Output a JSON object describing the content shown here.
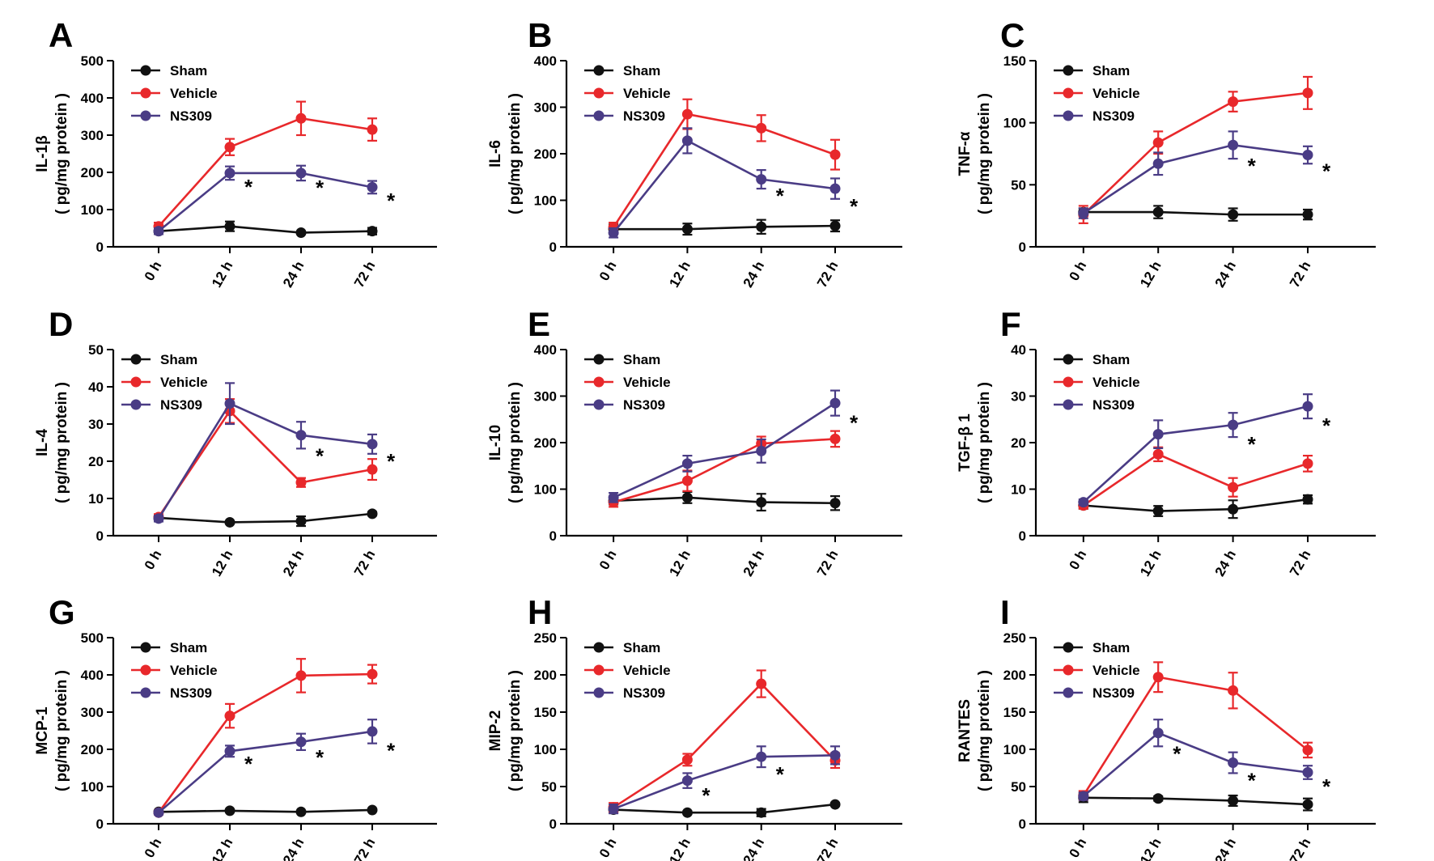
{
  "figure": {
    "series_names": [
      "Sham",
      "Vehicle",
      "NS309"
    ],
    "series_colors": {
      "Sham": "#111111",
      "Vehicle": "#e8282b",
      "NS309": "#4a3c85"
    },
    "categories": [
      "0 h",
      "12 h",
      "24 h",
      "72 h"
    ],
    "significance_marker": "*"
  },
  "chart_data": [
    {
      "type": "line",
      "panel": "A",
      "ylabel": "IL-1β",
      "yunit": "( pg/mg protein )",
      "ylim": [
        0,
        500
      ],
      "yticks": [
        "0",
        "100",
        "200",
        "300",
        "400",
        "500"
      ],
      "categories": [
        "0 h",
        "12 h",
        "24 h",
        "72 h"
      ],
      "series": [
        {
          "name": "Sham",
          "values": [
            42,
            55,
            38,
            42
          ],
          "errors": [
            8,
            13,
            4,
            9
          ]
        },
        {
          "name": "Vehicle",
          "values": [
            55,
            268,
            345,
            315
          ],
          "errors": [
            10,
            22,
            45,
            30
          ]
        },
        {
          "name": "NS309",
          "values": [
            42,
            198,
            198,
            160
          ],
          "errors": [
            8,
            18,
            20,
            17
          ]
        }
      ],
      "significance": [
        1,
        2,
        3
      ]
    },
    {
      "type": "line",
      "panel": "B",
      "ylabel": "IL-6",
      "yunit": "( pg/mg protein )",
      "ylim": [
        0,
        400
      ],
      "yticks": [
        "0",
        "100",
        "200",
        "300",
        "400"
      ],
      "categories": [
        "0 h",
        "12 h",
        "24 h",
        "72 h"
      ],
      "series": [
        {
          "name": "Sham",
          "values": [
            38,
            38,
            43,
            45
          ],
          "errors": [
            10,
            12,
            15,
            12
          ]
        },
        {
          "name": "Vehicle",
          "values": [
            42,
            285,
            255,
            198
          ],
          "errors": [
            10,
            32,
            28,
            32
          ]
        },
        {
          "name": "NS309",
          "values": [
            30,
            228,
            145,
            125
          ],
          "errors": [
            10,
            27,
            20,
            22
          ]
        }
      ],
      "significance": [
        2,
        3
      ]
    },
    {
      "type": "line",
      "panel": "C",
      "ylabel": "TNF-α",
      "yunit": "( pg/mg protein )",
      "ylim": [
        0,
        150
      ],
      "yticks": [
        "0",
        "50",
        "100",
        "150"
      ],
      "categories": [
        "0 h",
        "12 h",
        "24 h",
        "72 h"
      ],
      "series": [
        {
          "name": "Sham",
          "values": [
            28,
            28,
            26,
            26
          ],
          "errors": [
            3,
            5,
            5,
            4
          ]
        },
        {
          "name": "Vehicle",
          "values": [
            26,
            84,
            117,
            124
          ],
          "errors": [
            7,
            9,
            8,
            13
          ]
        },
        {
          "name": "NS309",
          "values": [
            27,
            67,
            82,
            74
          ],
          "errors": [
            4,
            9,
            11,
            7
          ]
        }
      ],
      "significance": [
        2,
        3
      ]
    },
    {
      "type": "line",
      "panel": "D",
      "ylabel": "IL-4",
      "yunit": "( pg/mg protein )",
      "ylim": [
        0,
        50
      ],
      "yticks": [
        "0",
        "10",
        "20",
        "30",
        "40",
        "50"
      ],
      "categories": [
        "0 h",
        "12 h",
        "24 h",
        "72 h"
      ],
      "series": [
        {
          "name": "Sham",
          "values": [
            4.8,
            3.6,
            3.9,
            5.9
          ],
          "errors": [
            0.5,
            0.3,
            1.3,
            0.5
          ]
        },
        {
          "name": "Vehicle",
          "values": [
            5.0,
            33.5,
            14.3,
            17.8
          ],
          "errors": [
            0.8,
            3.2,
            1.2,
            2.8
          ]
        },
        {
          "name": "NS309",
          "values": [
            4.6,
            35.5,
            27.0,
            24.6
          ],
          "errors": [
            0.8,
            5.5,
            3.6,
            2.6
          ]
        }
      ],
      "significance": [
        2,
        3
      ]
    },
    {
      "type": "line",
      "panel": "E",
      "ylabel": "IL-10",
      "yunit": "( pg/mg protein )",
      "ylim": [
        0,
        400
      ],
      "yticks": [
        "0",
        "100",
        "200",
        "300",
        "400"
      ],
      "categories": [
        "0 h",
        "12 h",
        "24 h",
        "72 h"
      ],
      "series": [
        {
          "name": "Sham",
          "values": [
            75,
            82,
            72,
            70
          ],
          "errors": [
            8,
            12,
            18,
            15
          ]
        },
        {
          "name": "Vehicle",
          "values": [
            72,
            118,
            198,
            208
          ],
          "errors": [
            10,
            22,
            15,
            17
          ]
        },
        {
          "name": "NS309",
          "values": [
            82,
            155,
            182,
            285
          ],
          "errors": [
            10,
            17,
            25,
            27
          ]
        }
      ],
      "significance": [
        3
      ]
    },
    {
      "type": "line",
      "panel": "F",
      "ylabel": "TGF-β 1",
      "yunit": "( pg/mg protein )",
      "ylim": [
        0,
        40
      ],
      "yticks": [
        "0",
        "10",
        "20",
        "30",
        "40"
      ],
      "categories": [
        "0 h",
        "12 h",
        "24 h",
        "72 h"
      ],
      "series": [
        {
          "name": "Sham",
          "values": [
            6.5,
            5.3,
            5.7,
            7.8
          ],
          "errors": [
            0.7,
            1.1,
            1.9,
            0.9
          ]
        },
        {
          "name": "Vehicle",
          "values": [
            6.5,
            17.5,
            10.4,
            15.5
          ],
          "errors": [
            0.7,
            1.5,
            2.0,
            1.7
          ]
        },
        {
          "name": "NS309",
          "values": [
            7.2,
            21.8,
            23.8,
            27.8
          ],
          "errors": [
            0.6,
            3.0,
            2.6,
            2.6
          ]
        }
      ],
      "significance": [
        2,
        3
      ]
    },
    {
      "type": "line",
      "panel": "G",
      "ylabel": "MCP-1",
      "yunit": "( pg/mg protein )",
      "ylim": [
        0,
        500
      ],
      "yticks": [
        "0",
        "100",
        "200",
        "300",
        "400",
        "500"
      ],
      "categories": [
        "0 h",
        "12 h",
        "24 h",
        "72 h"
      ],
      "series": [
        {
          "name": "Sham",
          "values": [
            32,
            35,
            32,
            37
          ],
          "errors": [
            3,
            3,
            3,
            3
          ]
        },
        {
          "name": "Vehicle",
          "values": [
            30,
            290,
            398,
            402
          ],
          "errors": [
            5,
            32,
            45,
            25
          ]
        },
        {
          "name": "NS309",
          "values": [
            30,
            195,
            220,
            248
          ],
          "errors": [
            5,
            15,
            22,
            32
          ]
        }
      ],
      "significance": [
        1,
        2,
        3
      ]
    },
    {
      "type": "line",
      "panel": "H",
      "ylabel": "MIP-2",
      "yunit": "( pg/mg protein )",
      "ylim": [
        0,
        250
      ],
      "yticks": [
        "0",
        "50",
        "100",
        "150",
        "200",
        "250"
      ],
      "categories": [
        "0 h",
        "12 h",
        "24 h",
        "72 h"
      ],
      "series": [
        {
          "name": "Sham",
          "values": [
            19,
            15,
            15,
            26
          ],
          "errors": [
            4,
            2,
            5,
            2
          ]
        },
        {
          "name": "Vehicle",
          "values": [
            22,
            86,
            188,
            85
          ],
          "errors": [
            6,
            8,
            18,
            10
          ]
        },
        {
          "name": "NS309",
          "values": [
            20,
            58,
            90,
            92
          ],
          "errors": [
            6,
            10,
            14,
            12
          ]
        }
      ],
      "significance": [
        1,
        2
      ]
    },
    {
      "type": "line",
      "panel": "I",
      "ylabel": "RANTES",
      "yunit": "( pg/mg protein )",
      "ylim": [
        0,
        250
      ],
      "yticks": [
        "0",
        "50",
        "100",
        "150",
        "200",
        "250"
      ],
      "categories": [
        "0 h",
        "12 h",
        "24 h",
        "72 h"
      ],
      "series": [
        {
          "name": "Sham",
          "values": [
            35,
            34,
            31,
            26
          ],
          "errors": [
            6,
            3,
            7,
            8
          ]
        },
        {
          "name": "Vehicle",
          "values": [
            38,
            197,
            179,
            99
          ],
          "errors": [
            6,
            20,
            24,
            10
          ]
        },
        {
          "name": "NS309",
          "values": [
            37,
            122,
            82,
            69
          ],
          "errors": [
            5,
            18,
            14,
            9
          ]
        }
      ],
      "significance": [
        1,
        2,
        3
      ]
    }
  ]
}
